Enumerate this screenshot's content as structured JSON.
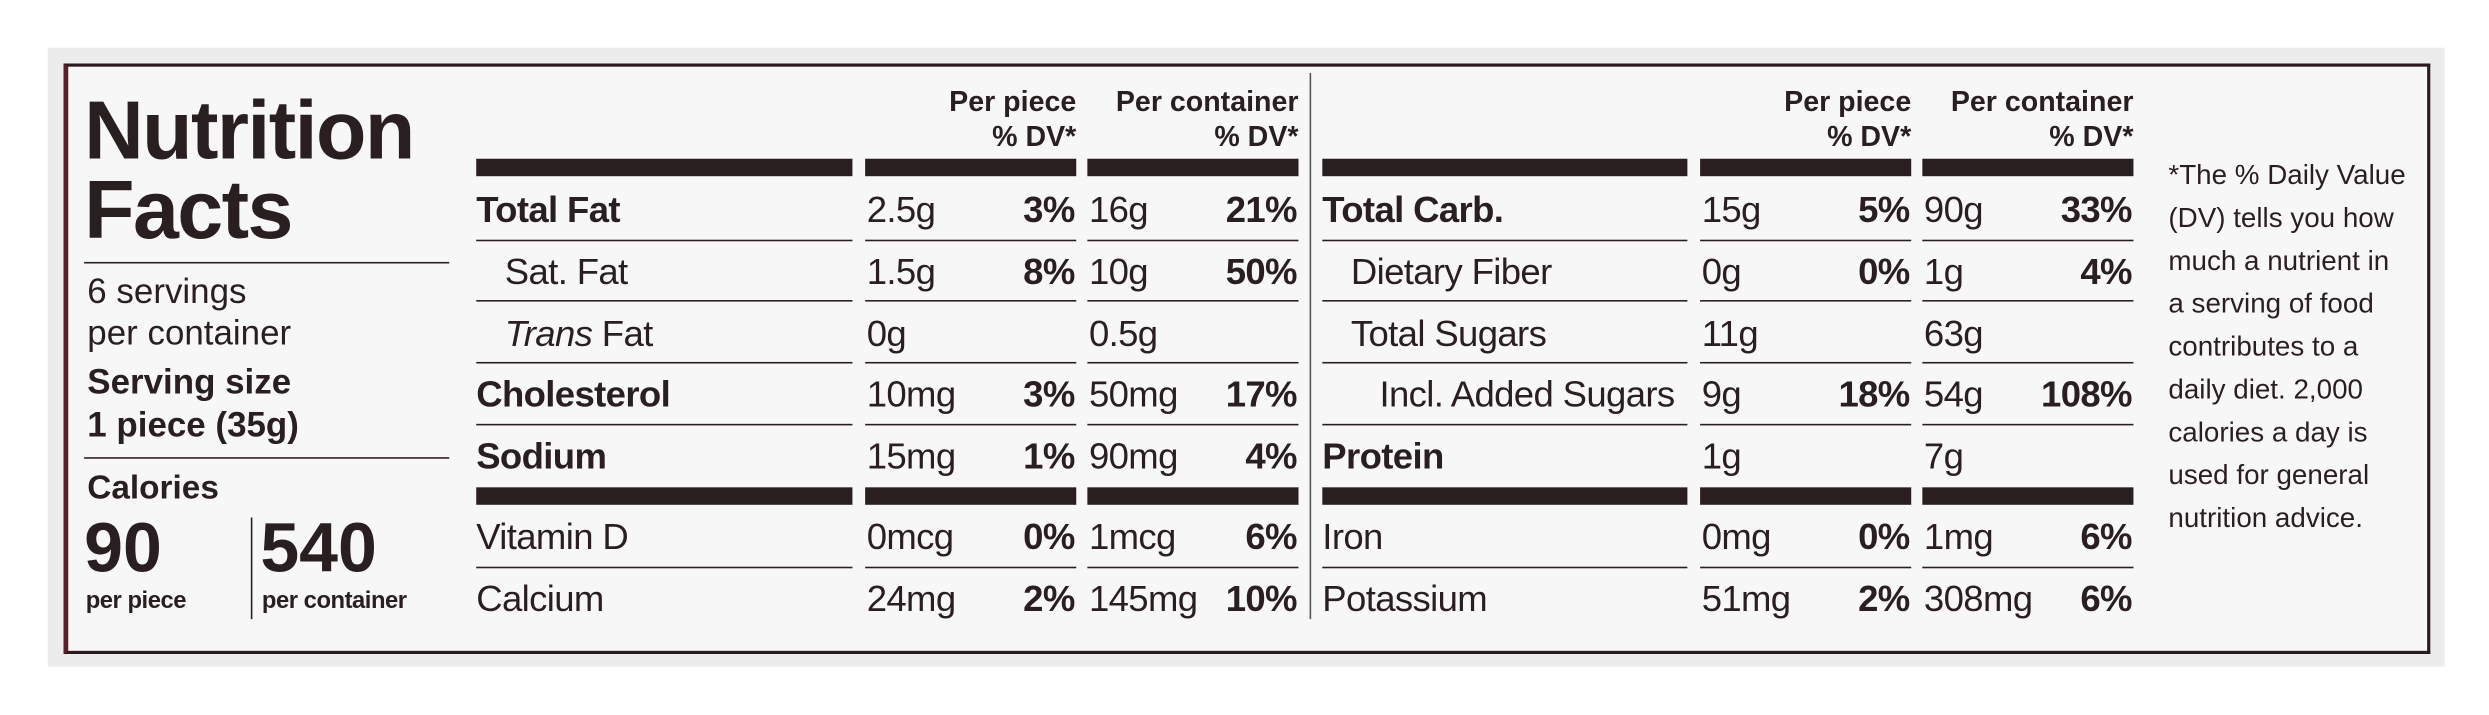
{
  "header": {
    "title_line1": "Nutrition",
    "title_line2": "Facts",
    "servings_line1": "6 servings",
    "servings_line2": "per container",
    "serving_size_label": "Serving size",
    "serving_size_value": "1 piece (35g)",
    "calories_label": "Calories",
    "calories": [
      {
        "value": "90",
        "unit": "per piece"
      },
      {
        "value": "540",
        "unit": "per container"
      }
    ]
  },
  "tables": [
    {
      "columns": [
        {
          "line1": "Per piece",
          "line2": "% DV*"
        },
        {
          "line1": "Per container",
          "line2": "% DV*"
        }
      ],
      "rows": [
        {
          "name": "Total Fat",
          "piece_amount": "2.5g",
          "piece_dv": "3%",
          "container_amount": "16g",
          "container_dv": "21%"
        },
        {
          "name": "Sat. Fat",
          "piece_amount": "1.5g",
          "piece_dv": "8%",
          "container_amount": "10g",
          "container_dv": "50%"
        },
        {
          "name_italic": "Trans",
          "name": "Fat",
          "piece_amount": "0g",
          "piece_dv": null,
          "container_amount": "0.5g",
          "container_dv": null
        },
        {
          "name": "Cholesterol",
          "piece_amount": "10mg",
          "piece_dv": "3%",
          "container_amount": "50mg",
          "container_dv": "17%"
        },
        {
          "name": "Sodium",
          "piece_amount": "15mg",
          "piece_dv": "1%",
          "container_amount": "90mg",
          "container_dv": "4%"
        },
        {
          "name": "Vitamin D",
          "piece_amount": "0mcg",
          "piece_dv": "0%",
          "container_amount": "1mcg",
          "container_dv": "6%"
        },
        {
          "name": "Calcium",
          "piece_amount": "24mg",
          "piece_dv": "2%",
          "container_amount": "145mg",
          "container_dv": "10%"
        }
      ]
    },
    {
      "columns": [
        {
          "line1": "Per piece",
          "line2": "% DV*"
        },
        {
          "line1": "Per container",
          "line2": "% DV*"
        }
      ],
      "rows": [
        {
          "name": "Total Carb.",
          "piece_amount": "15g",
          "piece_dv": "5%",
          "container_amount": "90g",
          "container_dv": "33%"
        },
        {
          "name": "Dietary Fiber",
          "piece_amount": "0g",
          "piece_dv": "0%",
          "container_amount": "1g",
          "container_dv": "4%"
        },
        {
          "name": "Total Sugars",
          "piece_amount": "11g",
          "piece_dv": null,
          "container_amount": "63g",
          "container_dv": null
        },
        {
          "name": "Incl. Added Sugars",
          "piece_amount": "9g",
          "piece_dv": "18%",
          "container_amount": "54g",
          "container_dv": "108%"
        },
        {
          "name": "Protein",
          "piece_amount": "1g",
          "piece_dv": null,
          "container_amount": "7g",
          "container_dv": null
        },
        {
          "name": "Iron",
          "piece_amount": "0mg",
          "piece_dv": "0%",
          "container_amount": "1mg",
          "container_dv": "6%"
        },
        {
          "name": "Potassium",
          "piece_amount": "51mg",
          "piece_dv": "2%",
          "container_amount": "308mg",
          "container_dv": "6%"
        }
      ]
    }
  ],
  "footnote": "*The % Daily Value (DV) tells you how much a nutrient in a serving of food contributes to a daily diet. 2,000 calories a day is used for general nutrition advice."
}
